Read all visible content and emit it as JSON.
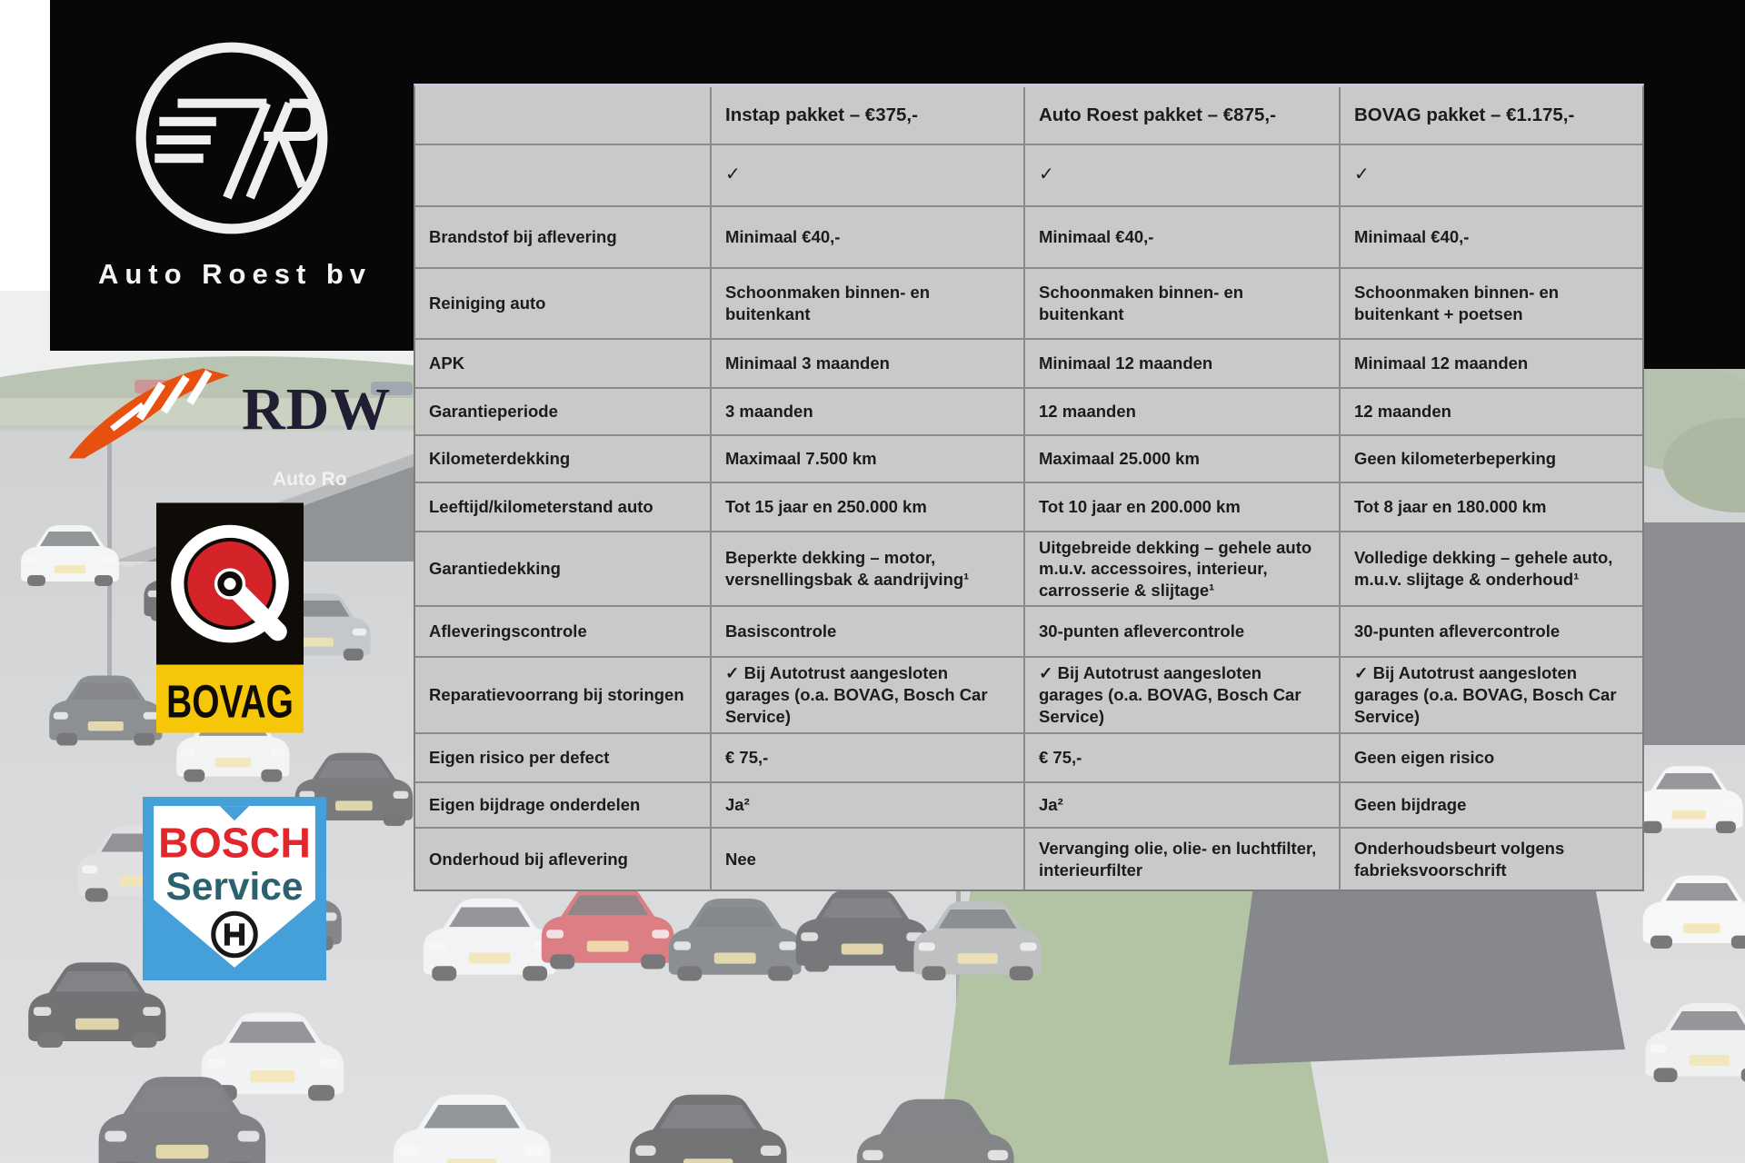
{
  "brand": {
    "name": "Auto Roest bv",
    "monogram": "7R"
  },
  "photo": {
    "building_sign": "Auto Ro"
  },
  "partner_logos": {
    "rdw": {
      "label": "RDW",
      "accent": "#e8500f",
      "text_color": "#211e33"
    },
    "bovag": {
      "label": "BOVAG",
      "black": "#0f0c08",
      "red": "#d5232a",
      "yellow": "#f6c608"
    },
    "bosch": {
      "line1": "BOSCH",
      "line2": "Service",
      "blue": "#45a0d9",
      "red": "#e1262c",
      "teal": "#2b6270"
    }
  },
  "table": {
    "style": {
      "cell_bg": "#c9c9c9",
      "grid_line": "#8a8a8a",
      "text": "#1c1c1c",
      "top_accent": "#cfc7db"
    },
    "columns": [
      {
        "label": ""
      },
      {
        "label": "Instap pakket – €375,-"
      },
      {
        "label": "Auto Roest pakket – €875,-"
      },
      {
        "label": "BOVAG pakket – €1.175,-"
      }
    ],
    "rows": [
      {
        "label": "",
        "cells": [
          "✓",
          "✓",
          "✓"
        ]
      },
      {
        "label": "Brandstof bij aflevering",
        "cells": [
          "Minimaal €40,-",
          "Minimaal €40,-",
          "Minimaal €40,-"
        ]
      },
      {
        "label": "Reiniging auto",
        "cells": [
          "Schoonmaken binnen- en buitenkant",
          "Schoonmaken binnen- en buitenkant",
          "Schoonmaken binnen- en buitenkant + poetsen"
        ]
      },
      {
        "label": "APK",
        "cells": [
          "Minimaal 3 maanden",
          "Minimaal 12 maanden",
          "Minimaal 12 maanden"
        ]
      },
      {
        "label": "Garantieperiode",
        "cells": [
          "3 maanden",
          "12 maanden",
          "12 maanden"
        ]
      },
      {
        "label": "Kilometerdekking",
        "cells": [
          "Maximaal 7.500 km",
          "Maximaal 25.000 km",
          "Geen kilometerbeperking"
        ]
      },
      {
        "label": "Leeftijd/kilometerstand auto",
        "cells": [
          "Tot 15 jaar en 250.000 km",
          "Tot 10 jaar en 200.000 km",
          "Tot 8 jaar en 180.000 km"
        ]
      },
      {
        "label": "Garantiedekking",
        "cells": [
          "Beperkte dekking – motor, versnellingsbak & aandrijving¹",
          "Uitgebreide dekking – gehele auto m.u.v. accessoires, interieur, carrosserie & slijtage¹",
          "Volledige dekking – gehele auto, m.u.v. slijtage & onderhoud¹"
        ]
      },
      {
        "label": "Afleveringscontrole",
        "cells": [
          "Basiscontrole",
          "30-punten aflevercontrole",
          "30-punten aflevercontrole"
        ]
      },
      {
        "label": "Reparatievoorrang bij storingen",
        "cells": [
          "✓ Bij Autotrust aangesloten garages (o.a. BOVAG, Bosch Car Service)",
          "✓ Bij Autotrust aangesloten garages (o.a. BOVAG, Bosch Car Service)",
          "✓ Bij Autotrust aangesloten garages (o.a. BOVAG, Bosch Car Service)"
        ]
      },
      {
        "label": "Eigen risico per defect",
        "cells": [
          "€ 75,-",
          "€ 75,-",
          "Geen eigen risico"
        ]
      },
      {
        "label": "Eigen bijdrage onderdelen",
        "cells": [
          "Ja²",
          "Ja²",
          "Geen bijdrage"
        ]
      },
      {
        "label": "Onderhoud bij aflevering",
        "cells": [
          "Nee",
          "Vervanging olie, olie- en luchtfilter, interieurfilter",
          "Onderhoudsbeurt volgens fabrieksvoorschrift"
        ]
      }
    ]
  }
}
